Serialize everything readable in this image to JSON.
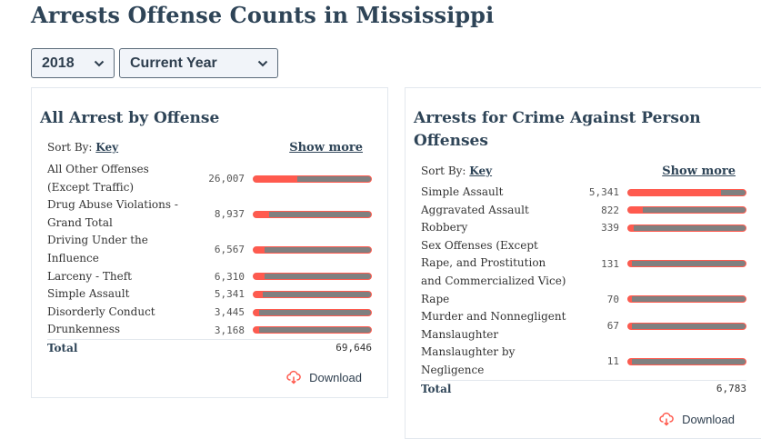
{
  "page": {
    "title": "Arrests Offense Counts in Mississippi"
  },
  "filters": {
    "year": {
      "selected": "2018"
    },
    "period": {
      "selected": "Current Year"
    }
  },
  "colors": {
    "title": "#2e4457",
    "bar_fill": "#ff5a4e",
    "bar_track": "#808080",
    "border": "#e3e8ee"
  },
  "panels": {
    "all_offense": {
      "title": "All Arrest by Offense",
      "sort_label": "Sort By:",
      "sort_key": "Key",
      "show_more": "Show more",
      "rows": [
        {
          "label": "All Other Offenses (Except Traffic)",
          "value": "26,007",
          "pct": 37.3
        },
        {
          "label": "Drug Abuse Violations - Grand Total",
          "value": "8,937",
          "pct": 12.8
        },
        {
          "label": "Driving Under the Influence",
          "value": "6,567",
          "pct": 9.4
        },
        {
          "label": "Larceny - Theft",
          "value": "6,310",
          "pct": 9.1
        },
        {
          "label": "Simple Assault",
          "value": "5,341",
          "pct": 7.7
        },
        {
          "label": "Disorderly Conduct",
          "value": "3,445",
          "pct": 4.9
        },
        {
          "label": "Drunkenness",
          "value": "3,168",
          "pct": 4.5
        }
      ],
      "total_label": "Total",
      "total_value": "69,646",
      "download_label": "Download"
    },
    "person_offense": {
      "title": "Arrests for Crime Against Person Offenses",
      "sort_label": "Sort By:",
      "sort_key": "Key",
      "show_more": "Show more",
      "rows": [
        {
          "label": "Simple Assault",
          "value": "5,341",
          "pct": 78.7
        },
        {
          "label": "Aggravated Assault",
          "value": "822",
          "pct": 12.1
        },
        {
          "label": "Robbery",
          "value": "339",
          "pct": 5.0
        },
        {
          "label": "Sex Offenses (Except Rape, and Prostitution and Commercialized Vice)",
          "value": "131",
          "pct": 1.9
        },
        {
          "label": "Rape",
          "value": "70",
          "pct": 1.0
        },
        {
          "label": "Murder and Nonnegligent Manslaughter",
          "value": "67",
          "pct": 1.0
        },
        {
          "label": "Manslaughter by Negligence",
          "value": "11",
          "pct": 0.2
        }
      ],
      "total_label": "Total",
      "total_value": "6,783",
      "download_label": "Download"
    }
  }
}
